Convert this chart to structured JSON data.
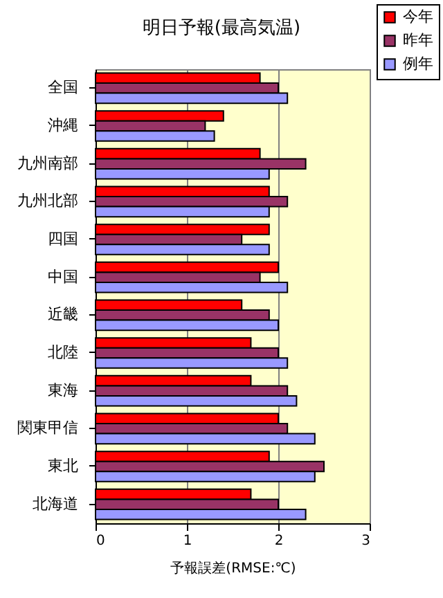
{
  "chart_data": {
    "type": "bar",
    "orientation": "horizontal",
    "title": "明日予報(最高気温)",
    "xlabel": "予報誤差(RMSE:℃)",
    "categories": [
      "全国",
      "沖縄",
      "九州南部",
      "九州北部",
      "四国",
      "中国",
      "近畿",
      "北陸",
      "東海",
      "関東甲信",
      "東北",
      "北海道"
    ],
    "series": [
      {
        "name": "今年",
        "color": "#ff0000",
        "values": [
          1.8,
          1.4,
          1.8,
          1.9,
          1.9,
          2.0,
          1.6,
          1.7,
          1.7,
          2.0,
          1.9,
          1.7
        ]
      },
      {
        "name": "昨年",
        "color": "#993366",
        "values": [
          2.0,
          1.2,
          2.3,
          2.1,
          1.6,
          1.8,
          1.9,
          2.0,
          2.1,
          2.1,
          2.5,
          2.0
        ]
      },
      {
        "name": "例年",
        "color": "#9999ff",
        "values": [
          2.1,
          1.3,
          1.9,
          1.9,
          1.9,
          2.1,
          2.0,
          2.1,
          2.2,
          2.4,
          2.4,
          2.3
        ]
      }
    ],
    "xlim": [
      0,
      3
    ],
    "xticks": [
      0,
      1,
      2,
      3
    ],
    "grid": "x",
    "legend": "top right"
  }
}
